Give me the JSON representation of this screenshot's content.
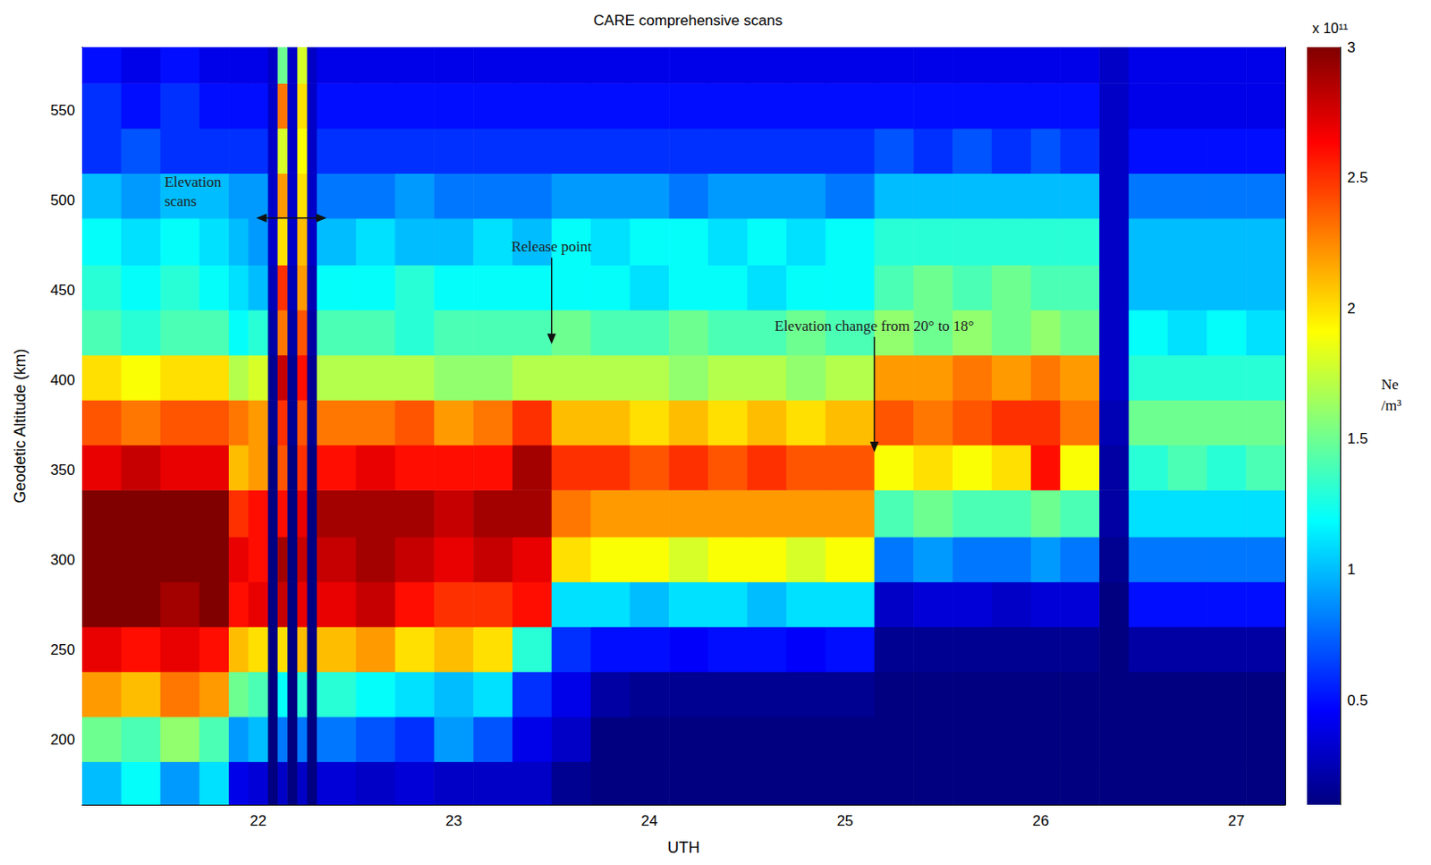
{
  "chart_data": {
    "type": "heatmap",
    "title": "CARE comprehensive scans",
    "x_label": "UTH",
    "y_label": "Geodetic Altitude (km)",
    "xlim": [
      21.1,
      27.25
    ],
    "xticks": [
      22,
      23,
      24,
      25,
      26,
      27
    ],
    "ylim": [
      164,
      585
    ],
    "yticks": [
      200,
      250,
      300,
      350,
      400,
      450,
      500,
      550
    ],
    "x_edges": [
      21.1,
      21.3,
      21.5,
      21.7,
      21.85,
      21.95,
      22.05,
      22.1,
      22.15,
      22.2,
      22.25,
      22.3,
      22.5,
      22.7,
      22.9,
      23.1,
      23.3,
      23.5,
      23.7,
      23.9,
      24.1,
      24.3,
      24.5,
      24.7,
      24.9,
      25.15,
      25.35,
      25.55,
      25.75,
      25.95,
      26.1,
      26.3,
      26.45,
      26.65,
      26.85,
      27.05,
      27.25
    ],
    "y_edges": [
      164,
      188,
      213,
      238,
      263,
      288,
      313,
      339,
      364,
      389,
      414,
      439,
      464,
      490,
      515,
      540,
      565,
      585
    ],
    "values": [
      [
        1.0,
        1.2,
        0.9,
        1.1,
        0.4,
        0.35,
        0.1,
        0.3,
        0.1,
        0.3,
        0.1,
        0.35,
        0.3,
        0.35,
        0.3,
        0.3,
        0.3,
        0.15,
        0.1,
        0.1,
        0.1,
        0.1,
        0.1,
        0.1,
        0.1,
        0.1,
        0.1,
        0.1,
        0.1,
        0.1,
        0.1,
        0.1,
        0.1,
        0.1,
        0.1,
        0.1
      ],
      [
        1.5,
        1.4,
        1.6,
        1.4,
        0.9,
        1.0,
        0.1,
        0.8,
        0.1,
        0.8,
        0.1,
        0.8,
        0.7,
        0.6,
        0.9,
        0.7,
        0.4,
        0.3,
        0.1,
        0.1,
        0.1,
        0.1,
        0.1,
        0.1,
        0.1,
        0.1,
        0.1,
        0.1,
        0.1,
        0.1,
        0.1,
        0.1,
        0.1,
        0.1,
        0.1,
        0.1
      ],
      [
        2.2,
        2.1,
        2.3,
        2.2,
        1.5,
        1.4,
        0.1,
        1.2,
        0.1,
        1.3,
        0.1,
        1.3,
        1.2,
        1.1,
        1.0,
        1.1,
        0.6,
        0.4,
        0.2,
        0.15,
        0.15,
        0.15,
        0.15,
        0.15,
        0.15,
        0.1,
        0.1,
        0.1,
        0.1,
        0.1,
        0.1,
        0.1,
        0.1,
        0.1,
        0.1,
        0.1
      ],
      [
        2.7,
        2.6,
        2.7,
        2.6,
        2.1,
        2.0,
        0.1,
        2.0,
        0.1,
        2.1,
        0.1,
        2.1,
        2.2,
        2.0,
        2.1,
        2.0,
        1.3,
        0.6,
        0.5,
        0.5,
        0.45,
        0.5,
        0.5,
        0.45,
        0.5,
        0.15,
        0.15,
        0.15,
        0.15,
        0.15,
        0.15,
        0.1,
        0.2,
        0.2,
        0.2,
        0.2
      ],
      [
        3.0,
        3.0,
        2.9,
        3.0,
        2.6,
        2.7,
        0.1,
        2.8,
        0.1,
        2.7,
        0.1,
        2.7,
        2.8,
        2.6,
        2.5,
        2.5,
        2.6,
        1.1,
        1.1,
        1.0,
        1.1,
        1.1,
        1.0,
        1.1,
        1.1,
        0.3,
        0.35,
        0.35,
        0.3,
        0.35,
        0.35,
        0.1,
        0.5,
        0.5,
        0.5,
        0.5
      ],
      [
        3.0,
        3.0,
        3.0,
        3.0,
        2.7,
        2.6,
        0.1,
        2.9,
        0.1,
        2.8,
        0.1,
        2.8,
        2.9,
        2.8,
        2.7,
        2.8,
        2.7,
        2.0,
        1.9,
        1.9,
        1.8,
        1.9,
        1.9,
        1.8,
        1.9,
        0.8,
        0.9,
        0.8,
        0.8,
        0.9,
        0.8,
        0.15,
        0.8,
        0.8,
        0.8,
        0.8
      ],
      [
        3.0,
        3.0,
        3.0,
        3.0,
        2.5,
        2.6,
        0.1,
        2.6,
        0.1,
        2.7,
        0.1,
        2.9,
        2.9,
        2.9,
        2.8,
        2.9,
        2.9,
        2.3,
        2.2,
        2.2,
        2.2,
        2.2,
        2.2,
        2.2,
        2.2,
        1.4,
        1.5,
        1.4,
        1.4,
        1.5,
        1.4,
        0.2,
        1.1,
        1.1,
        1.1,
        1.1
      ],
      [
        2.7,
        2.8,
        2.7,
        2.7,
        2.1,
        2.2,
        0.1,
        2.4,
        0.1,
        2.5,
        0.1,
        2.6,
        2.7,
        2.6,
        2.6,
        2.6,
        2.9,
        2.5,
        2.5,
        2.4,
        2.5,
        2.4,
        2.5,
        2.4,
        2.4,
        1.9,
        2.0,
        1.9,
        2.0,
        2.6,
        1.9,
        0.2,
        1.3,
        1.4,
        1.3,
        1.4
      ],
      [
        2.4,
        2.3,
        2.4,
        2.4,
        2.3,
        2.2,
        0.15,
        2.5,
        0.15,
        2.4,
        0.15,
        2.3,
        2.3,
        2.4,
        2.2,
        2.3,
        2.5,
        2.1,
        2.1,
        2.0,
        2.1,
        2.0,
        2.1,
        2.0,
        2.1,
        2.4,
        2.3,
        2.4,
        2.5,
        2.5,
        2.3,
        0.25,
        1.5,
        1.5,
        1.5,
        1.5
      ],
      [
        2.0,
        1.9,
        2.0,
        2.0,
        1.7,
        1.8,
        0.15,
        2.8,
        0.15,
        2.6,
        0.15,
        1.7,
        1.7,
        1.7,
        1.6,
        1.6,
        1.7,
        1.7,
        1.7,
        1.7,
        1.6,
        1.7,
        1.7,
        1.6,
        1.7,
        2.2,
        2.2,
        2.3,
        2.2,
        2.3,
        2.2,
        0.3,
        1.3,
        1.3,
        1.3,
        1.3
      ],
      [
        1.4,
        1.3,
        1.4,
        1.4,
        1.2,
        1.3,
        0.2,
        2.3,
        0.2,
        2.4,
        0.2,
        1.4,
        1.4,
        1.3,
        1.4,
        1.4,
        1.4,
        1.5,
        1.4,
        1.4,
        1.5,
        1.4,
        1.4,
        1.5,
        1.4,
        1.6,
        1.5,
        1.6,
        1.5,
        1.6,
        1.5,
        0.3,
        1.2,
        1.1,
        1.2,
        1.1
      ],
      [
        1.3,
        1.2,
        1.3,
        1.2,
        1.1,
        1.0,
        0.25,
        2.5,
        0.25,
        2.2,
        0.25,
        1.2,
        1.2,
        1.3,
        1.2,
        1.2,
        1.2,
        1.2,
        1.2,
        1.1,
        1.2,
        1.2,
        1.1,
        1.2,
        1.2,
        1.4,
        1.5,
        1.4,
        1.5,
        1.4,
        1.4,
        0.3,
        1.0,
        1.0,
        1.0,
        1.0
      ],
      [
        1.2,
        1.1,
        1.2,
        1.1,
        1.0,
        0.9,
        0.3,
        2.0,
        0.3,
        2.1,
        0.3,
        1.0,
        1.1,
        1.0,
        1.0,
        1.1,
        1.0,
        1.2,
        1.1,
        1.2,
        1.2,
        1.1,
        1.2,
        1.1,
        1.2,
        1.3,
        1.3,
        1.3,
        1.3,
        1.3,
        1.3,
        0.3,
        1.0,
        1.0,
        1.0,
        1.0
      ],
      [
        1.0,
        0.9,
        1.0,
        1.0,
        0.9,
        0.9,
        0.3,
        2.2,
        0.3,
        2.0,
        0.3,
        0.8,
        0.8,
        0.9,
        0.8,
        0.8,
        0.8,
        0.9,
        0.9,
        0.9,
        0.8,
        0.9,
        0.9,
        0.9,
        0.8,
        1.0,
        1.0,
        1.0,
        1.0,
        1.0,
        1.0,
        0.3,
        0.8,
        0.8,
        0.8,
        0.8
      ],
      [
        0.6,
        0.7,
        0.6,
        0.6,
        0.6,
        0.6,
        0.3,
        1.8,
        0.3,
        1.9,
        0.3,
        0.6,
        0.6,
        0.6,
        0.6,
        0.6,
        0.6,
        0.6,
        0.6,
        0.6,
        0.6,
        0.6,
        0.6,
        0.6,
        0.6,
        0.7,
        0.6,
        0.7,
        0.6,
        0.7,
        0.6,
        0.3,
        0.5,
        0.5,
        0.5,
        0.5
      ],
      [
        0.6,
        0.5,
        0.6,
        0.5,
        0.5,
        0.5,
        0.3,
        2.3,
        0.3,
        2.0,
        0.3,
        0.5,
        0.5,
        0.5,
        0.5,
        0.5,
        0.5,
        0.5,
        0.5,
        0.5,
        0.5,
        0.5,
        0.5,
        0.5,
        0.5,
        0.5,
        0.5,
        0.5,
        0.5,
        0.5,
        0.5,
        0.3,
        0.4,
        0.4,
        0.4,
        0.4
      ],
      [
        0.5,
        0.4,
        0.5,
        0.4,
        0.4,
        0.4,
        0.3,
        1.5,
        0.3,
        1.8,
        0.3,
        0.4,
        0.4,
        0.4,
        0.4,
        0.4,
        0.4,
        0.4,
        0.4,
        0.4,
        0.4,
        0.4,
        0.4,
        0.4,
        0.4,
        0.4,
        0.4,
        0.4,
        0.4,
        0.4,
        0.4,
        0.3,
        0.4,
        0.4,
        0.4,
        0.4
      ]
    ],
    "colorbar": {
      "label": "Ne /m³",
      "multiplier": "x 10¹¹",
      "lim": [
        0.1,
        3
      ],
      "ticks": [
        0.5,
        1,
        1.5,
        2,
        2.5,
        3
      ]
    },
    "annotations": [
      {
        "text": "Elevation scans",
        "x": [
          21.99,
          22.35
        ],
        "y": 490
      },
      {
        "text": "Release point",
        "x": 23.5,
        "y": [
          468,
          420
        ]
      },
      {
        "text": "Elevation change from 20° to 18°",
        "x": 25.15,
        "y": [
          424,
          360
        ]
      }
    ]
  }
}
